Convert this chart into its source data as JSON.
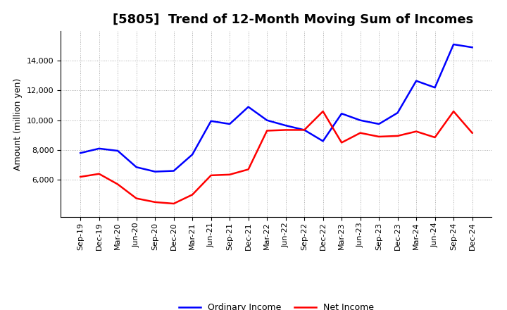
{
  "title": "[5805]  Trend of 12-Month Moving Sum of Incomes",
  "ylabel": "Amount (million yen)",
  "x_labels": [
    "Sep-19",
    "Dec-19",
    "Mar-20",
    "Jun-20",
    "Sep-20",
    "Dec-20",
    "Mar-21",
    "Jun-21",
    "Sep-21",
    "Dec-21",
    "Mar-22",
    "Jun-22",
    "Sep-22",
    "Dec-22",
    "Mar-23",
    "Jun-23",
    "Sep-23",
    "Dec-23",
    "Mar-24",
    "Jun-24",
    "Sep-24",
    "Dec-24"
  ],
  "ordinary_income": [
    7800,
    8100,
    7950,
    6850,
    6550,
    6600,
    7700,
    9950,
    9750,
    10900,
    10000,
    9650,
    9350,
    8600,
    10450,
    10000,
    9750,
    10500,
    12650,
    12200,
    15100,
    14900
  ],
  "net_income": [
    6200,
    6400,
    5700,
    4750,
    4500,
    4400,
    5000,
    6300,
    6350,
    6700,
    9300,
    9350,
    9350,
    10600,
    8500,
    9150,
    8900,
    8950,
    9250,
    8850,
    10600,
    9150
  ],
  "ordinary_color": "#0000FF",
  "net_color": "#FF0000",
  "line_width": 1.8,
  "ylim_min": 3500,
  "ylim_max": 16000,
  "yticks": [
    6000,
    8000,
    10000,
    12000,
    14000
  ],
  "background_color": "#FFFFFF",
  "grid_color": "#AAAAAA",
  "title_fontsize": 13,
  "ylabel_fontsize": 9,
  "tick_fontsize": 8,
  "legend_fontsize": 9,
  "legend_labels": [
    "Ordinary Income",
    "Net Income"
  ]
}
